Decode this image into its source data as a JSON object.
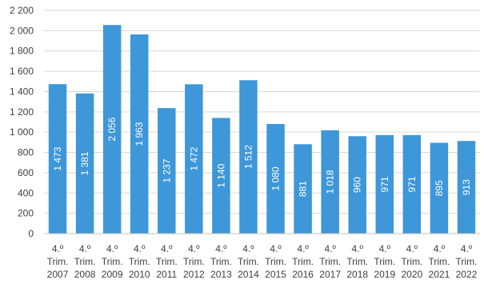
{
  "chart_data": {
    "type": "bar",
    "title": "",
    "xlabel": "",
    "ylabel": "",
    "ylim": [
      0,
      2200
    ],
    "ytick_step": 200,
    "ytick_labels": [
      "0",
      "200",
      "400",
      "600",
      "800",
      "1 000",
      "1 200",
      "1 400",
      "1 600",
      "1 800",
      "2 000",
      "2 200"
    ],
    "grid": true,
    "legend": "none",
    "bar_color": "#3d97d8",
    "categories": [
      [
        "4.º",
        "Trim.",
        "2007"
      ],
      [
        "4.º",
        "Trim.",
        "2008"
      ],
      [
        "4.º",
        "Trim.",
        "2009"
      ],
      [
        "4.º",
        "Trim.",
        "2010"
      ],
      [
        "4.º",
        "Trim.",
        "2011"
      ],
      [
        "4.º",
        "Trim.",
        "2012"
      ],
      [
        "4.º",
        "Trim.",
        "2013"
      ],
      [
        "4.º",
        "Trim.",
        "2014"
      ],
      [
        "4.º",
        "Trim.",
        "2015"
      ],
      [
        "4.º",
        "Trim.",
        "2016"
      ],
      [
        "4.º",
        "Trim.",
        "2017"
      ],
      [
        "4.º",
        "Trim.",
        "2018"
      ],
      [
        "4.º",
        "Trim.",
        "2019"
      ],
      [
        "4.º",
        "Trim.",
        "2020"
      ],
      [
        "4.º",
        "Trim.",
        "2021"
      ],
      [
        "4.º",
        "Trim.",
        "2022"
      ]
    ],
    "values": [
      1473,
      1381,
      2056,
      1963,
      1237,
      1472,
      1140,
      1512,
      1080,
      881,
      1018,
      960,
      971,
      971,
      895,
      913
    ],
    "value_labels": [
      "1 473",
      "1 381",
      "2 056",
      "1 963",
      "1 237",
      "1 472",
      "1 140",
      "1 512",
      "1 080",
      "881",
      "1 018",
      "960",
      "971",
      "971",
      "895",
      "913"
    ]
  }
}
